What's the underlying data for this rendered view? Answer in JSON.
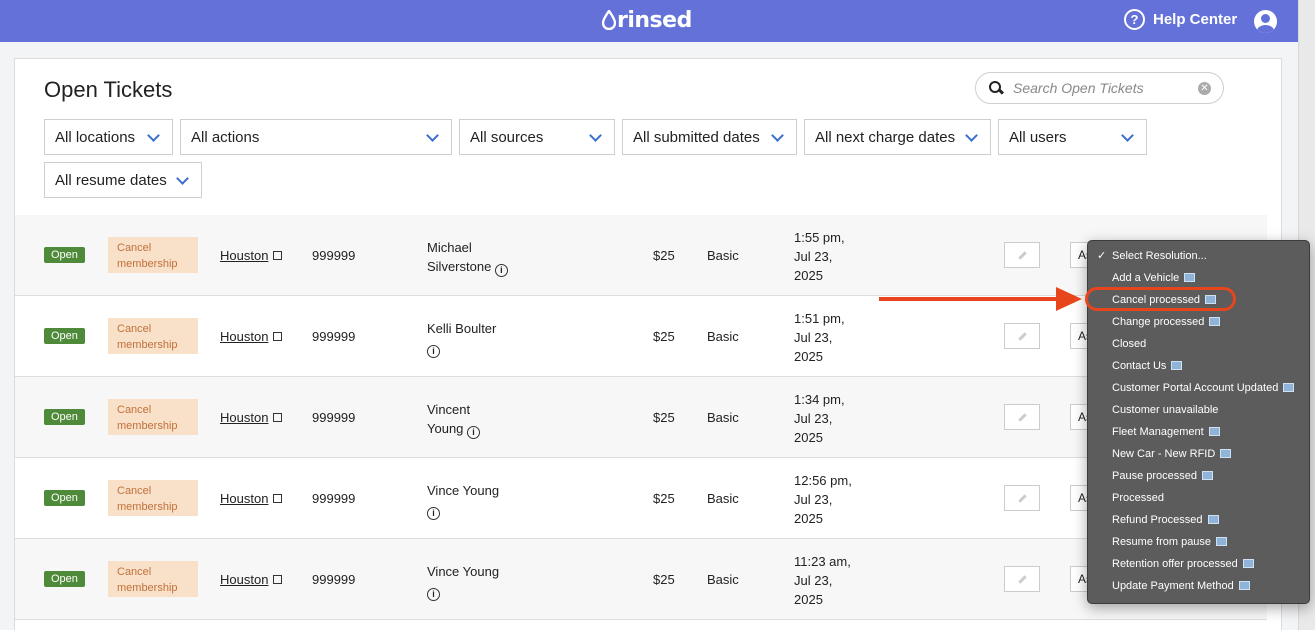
{
  "header": {
    "logo_text": "rinsed",
    "help_label": "Help Center",
    "help_icon": "question-circle-icon",
    "user_icon": "user-circle-icon",
    "brand_color": "#6371d8"
  },
  "page": {
    "title": "Open Tickets"
  },
  "search": {
    "placeholder": "Search Open Tickets",
    "value": ""
  },
  "filters": [
    {
      "label": "All locations"
    },
    {
      "label": "All actions"
    },
    {
      "label": "All sources"
    },
    {
      "label": "All submitted dates"
    },
    {
      "label": "All next charge dates"
    },
    {
      "label": "All users"
    },
    {
      "label": "All resume dates"
    }
  ],
  "rows": [
    {
      "status": "Open",
      "action": "Cancel membership",
      "location": "Houston",
      "phone": "999999",
      "name": "Michael Silverstone",
      "price": "$25",
      "plan": "Basic",
      "time": "1:55 pm,",
      "date": "Jul 23,",
      "year": "2025",
      "assign": "As"
    },
    {
      "status": "Open",
      "action": "Cancel membership",
      "location": "Houston",
      "phone": "999999",
      "name": "Kelli Boulter",
      "price": "$25",
      "plan": "Basic",
      "time": "1:51 pm,",
      "date": "Jul 23,",
      "year": "2025",
      "assign": "As"
    },
    {
      "status": "Open",
      "action": "Cancel membership",
      "location": "Houston",
      "phone": "999999",
      "name": "Vincent Young",
      "price": "$25",
      "plan": "Basic",
      "time": "1:34 pm,",
      "date": "Jul 23,",
      "year": "2025",
      "assign": "As"
    },
    {
      "status": "Open",
      "action": "Cancel membership",
      "location": "Houston",
      "phone": "999999",
      "name": "Vince Young",
      "price": "$25",
      "plan": "Basic",
      "time": "12:56 pm,",
      "date": "Jul 23,",
      "year": "2025",
      "assign": "As"
    },
    {
      "status": "Open",
      "action": "Cancel membership",
      "location": "Houston",
      "phone": "999999",
      "name": "Vince Young",
      "price": "$25",
      "plan": "Basic",
      "time": "11:23 am,",
      "date": "Jul 23,",
      "year": "2025",
      "assign": "As"
    }
  ],
  "resolution_menu": {
    "items": [
      {
        "label": "Select Resolution...",
        "checked": true,
        "emoji": false
      },
      {
        "label": "Add a Vehicle",
        "checked": false,
        "emoji": true
      },
      {
        "label": "Cancel processed",
        "checked": false,
        "emoji": true
      },
      {
        "label": "Change processed",
        "checked": false,
        "emoji": true
      },
      {
        "label": "Closed",
        "checked": false,
        "emoji": false
      },
      {
        "label": "Contact Us",
        "checked": false,
        "emoji": true
      },
      {
        "label": "Customer Portal Account Updated",
        "checked": false,
        "emoji": true
      },
      {
        "label": "Customer unavailable",
        "checked": false,
        "emoji": false
      },
      {
        "label": "Fleet Management",
        "checked": false,
        "emoji": true
      },
      {
        "label": "New Car - New RFID",
        "checked": false,
        "emoji": true
      },
      {
        "label": "Pause processed",
        "checked": false,
        "emoji": true
      },
      {
        "label": "Processed",
        "checked": false,
        "emoji": false
      },
      {
        "label": "Refund Processed",
        "checked": false,
        "emoji": true
      },
      {
        "label": "Resume from pause",
        "checked": false,
        "emoji": true
      },
      {
        "label": "Retention offer processed",
        "checked": false,
        "emoji": true
      },
      {
        "label": "Update Payment Method",
        "checked": false,
        "emoji": true
      }
    ],
    "highlighted_item": "Cancel processed",
    "annotation_color": "#e8451c"
  }
}
